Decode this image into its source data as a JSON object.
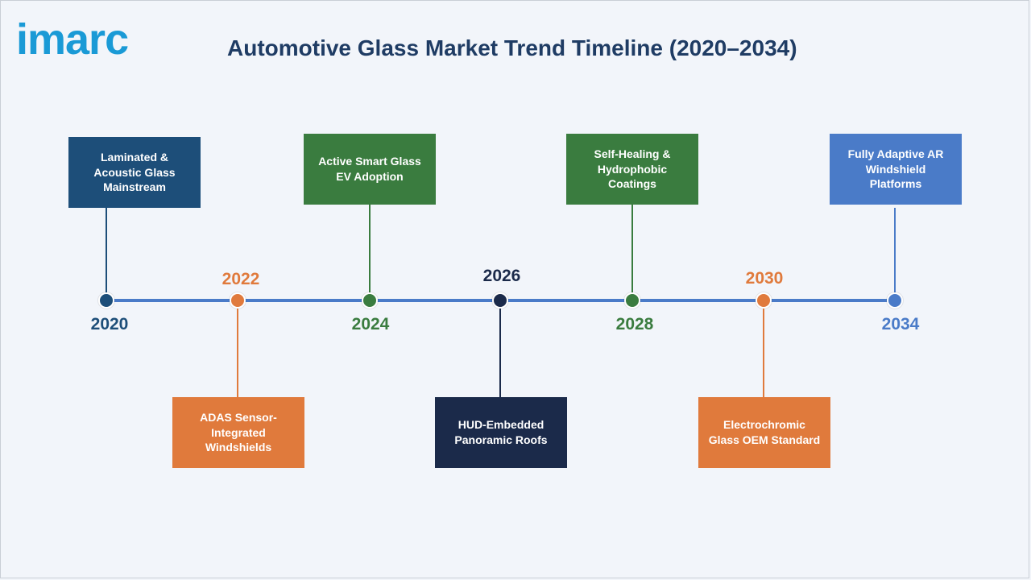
{
  "brand": {
    "logo_text": "imarc",
    "logo_color": "#1a9ad6"
  },
  "header": {
    "title": "Automotive Glass Market Trend Timeline (2020–2034)"
  },
  "colors": {
    "navy_blue": "#1d4e79",
    "orange": "#e07a3c",
    "green": "#3a7c3f",
    "dark_navy": "#1b2a4a",
    "blue": "#4a7bc8",
    "timeline": "#4a7bc8"
  },
  "milestones": [
    {
      "year": "2020",
      "label": "Laminated & Acoustic Glass Mainstream",
      "position": "above",
      "color": "#1d4e79"
    },
    {
      "year": "2022",
      "label": "ADAS Sensor-Integrated Windshields",
      "position": "below",
      "color": "#e07a3c"
    },
    {
      "year": "2024",
      "label": "Active Smart Glass EV Adoption",
      "position": "above",
      "color": "#3a7c3f"
    },
    {
      "year": "2026",
      "label": "HUD-Embedded Panoramic Roofs",
      "position": "below",
      "color": "#1b2a4a"
    },
    {
      "year": "2028",
      "label": "Self-Healing & Hydrophobic Coatings",
      "position": "above",
      "color": "#3a7c3f"
    },
    {
      "year": "2030",
      "label": "Electrochromic Glass OEM Standard",
      "position": "below",
      "color": "#e07a3c"
    },
    {
      "year": "2034",
      "label": "Fully Adaptive AR Windshield Platforms",
      "position": "above",
      "color": "#4a7bc8"
    }
  ]
}
